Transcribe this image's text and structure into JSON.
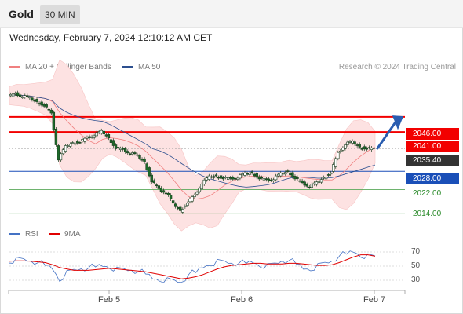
{
  "header": {
    "instrument": "Gold",
    "timeframe": "30 MIN",
    "datetime": "Wednesday, February 7, 2024 12:10:12 AM CET"
  },
  "legend": {
    "ma20_label": "MA 20 + Bollinger Bands",
    "ma50_label": "MA 50",
    "credit": "Research © 2024 Trading Central",
    "rsi_label": "RSI",
    "ma9_label": "9MA"
  },
  "levels": {
    "resistance_2": "2046.00",
    "resistance_1": "2041.00",
    "last_price": "2035.40",
    "pivot": "2028.00",
    "support_1": "2022.00",
    "support_2": "2014.00"
  },
  "rsi_ticks": [
    "70",
    "50",
    "30"
  ],
  "x_axis": [
    "Feb 5",
    "Feb 6",
    "Feb 7"
  ],
  "colors": {
    "ma20": "#f08080",
    "ma50": "#2c4f8f",
    "resistance": "#f20000",
    "pivot": "#1a4fb8",
    "support": "#5aa85a",
    "arrow": "#2a5db0",
    "rsi": "#4472c4",
    "ma9": "#e00000",
    "bull_candle": "#ffffff",
    "bear_candle": "#1d6b2a"
  },
  "chart_data": {
    "type": "candlestick",
    "y_range": [
      2012,
      2054
    ],
    "price_levels": [
      {
        "name": "resistance_2",
        "value": 2046.0
      },
      {
        "name": "resistance_1",
        "value": 2041.0
      },
      {
        "name": "last_price",
        "value": 2035.4
      },
      {
        "name": "pivot",
        "value": 2028.0
      },
      {
        "name": "support_1",
        "value": 2022.0
      },
      {
        "name": "support_2",
        "value": 2014.0
      }
    ],
    "close_path": [
      2053,
      2053.5,
      2052.8,
      2052,
      2051,
      2050,
      2047,
      2032,
      2036,
      2037.5,
      2038,
      2039,
      2040,
      2041,
      2039,
      2036,
      2035,
      2034,
      2033,
      2031,
      2025,
      2022,
      2021,
      2017,
      2015,
      2018,
      2020,
      2024,
      2026,
      2026.5,
      2026,
      2025.5,
      2026,
      2027,
      2027.5,
      2026,
      2025,
      2025.5,
      2027,
      2028,
      2026,
      2024,
      2023,
      2024,
      2026,
      2028,
      2034,
      2037,
      2037.5,
      2036,
      2035.8,
      2035.4
    ],
    "rsi_range": [
      20,
      80
    ],
    "rsi_ticks": [
      70,
      50,
      30
    ],
    "rsi_values": [
      58,
      59,
      58,
      56,
      55,
      52,
      48,
      32,
      40,
      43,
      45,
      47,
      50,
      52,
      50,
      45,
      44,
      43,
      42,
      40,
      34,
      32,
      30,
      28,
      26,
      38,
      42,
      50,
      54,
      56,
      55,
      53,
      54,
      55,
      57,
      52,
      50,
      52,
      56,
      58,
      54,
      48,
      47,
      50,
      53,
      56,
      64,
      68,
      72,
      66,
      64,
      62
    ],
    "ma9_values": [
      57,
      57.5,
      57.5,
      57,
      56,
      55,
      52,
      48,
      46,
      44,
      44,
      44,
      45,
      46,
      47,
      46,
      45,
      44,
      43,
      42,
      40,
      38,
      36,
      34,
      32,
      33,
      35,
      38,
      42,
      46,
      49,
      51,
      52,
      53,
      54,
      54,
      53,
      53,
      53,
      54,
      54,
      53,
      52,
      51,
      51,
      52,
      55,
      59,
      63,
      66,
      66,
      64
    ],
    "x_labels": [
      "Feb 5",
      "Feb 6",
      "Feb 7"
    ]
  }
}
